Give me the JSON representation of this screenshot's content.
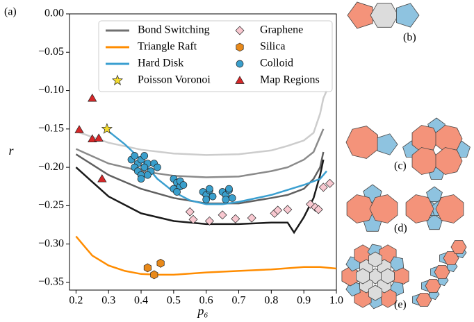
{
  "chart_data": {
    "type": "line",
    "label": "(a)",
    "xlabel": "p₆",
    "ylabel": "r",
    "xlim": [
      0.18,
      1.0
    ],
    "ylim": [
      -0.36,
      0.0
    ],
    "xticks": [
      0.2,
      0.3,
      0.4,
      0.5,
      0.6,
      0.7,
      0.8,
      0.9,
      {
        "value": 1.0,
        "label": "1.0"
      }
    ],
    "yticks": [
      {
        "value": 0.0,
        "label": "0.00"
      },
      {
        "value": -0.05,
        "label": "−0.05"
      },
      {
        "value": -0.1,
        "label": "−0.10"
      },
      {
        "value": -0.15,
        "label": "−0.15"
      },
      {
        "value": -0.2,
        "label": "−0.20"
      },
      {
        "value": -0.25,
        "label": "−0.25"
      },
      {
        "value": -0.3,
        "label": "−0.30"
      },
      {
        "value": -0.35,
        "label": "−0.35"
      }
    ],
    "series": [
      {
        "name": "Bond Switching",
        "kind": "line",
        "color": "#707070",
        "curves": [
          {
            "color": "#cccccc",
            "x": [
              0.2,
              0.3,
              0.4,
              0.5,
              0.6,
              0.7,
              0.8,
              0.85,
              0.9,
              0.93,
              0.95,
              0.96,
              0.97
            ],
            "values": [
              -0.153,
              -0.168,
              -0.177,
              -0.182,
              -0.184,
              -0.183,
              -0.178,
              -0.172,
              -0.165,
              -0.155,
              -0.13,
              -0.11,
              -0.1
            ]
          },
          {
            "color": "#8a8a8a",
            "x": [
              0.2,
              0.3,
              0.4,
              0.5,
              0.6,
              0.7,
              0.8,
              0.85,
              0.9,
              0.93,
              0.95,
              0.96
            ],
            "values": [
              -0.176,
              -0.195,
              -0.205,
              -0.211,
              -0.213,
              -0.212,
              -0.205,
              -0.2,
              -0.19,
              -0.18,
              -0.16,
              -0.15
            ]
          },
          {
            "color": "#606060",
            "x": [
              0.2,
              0.3,
              0.4,
              0.5,
              0.6,
              0.7,
              0.8,
              0.85,
              0.9,
              0.93,
              0.95,
              0.96
            ],
            "values": [
              -0.183,
              -0.21,
              -0.228,
              -0.24,
              -0.247,
              -0.247,
              -0.24,
              -0.236,
              -0.228,
              -0.215,
              -0.2,
              -0.18
            ]
          },
          {
            "color": "#1a1a1a",
            "x": [
              0.2,
              0.3,
              0.4,
              0.5,
              0.6,
              0.7,
              0.8,
              0.85,
              0.87,
              0.9,
              0.93,
              0.95,
              0.96
            ],
            "values": [
              -0.2,
              -0.238,
              -0.26,
              -0.27,
              -0.274,
              -0.274,
              -0.272,
              -0.272,
              -0.285,
              -0.265,
              -0.24,
              -0.21,
              -0.19
            ]
          }
        ]
      },
      {
        "name": "Triangle Raft",
        "kind": "line",
        "color": "#ff8c00",
        "x": [
          0.2,
          0.22,
          0.25,
          0.3,
          0.35,
          0.4,
          0.45,
          0.5,
          0.6,
          0.7,
          0.8,
          0.9,
          0.95,
          1.0
        ],
        "values": [
          -0.29,
          -0.3,
          -0.315,
          -0.328,
          -0.335,
          -0.339,
          -0.34,
          -0.34,
          -0.337,
          -0.335,
          -0.333,
          -0.33,
          -0.33,
          -0.332
        ]
      },
      {
        "name": "Hard Disk",
        "kind": "line",
        "color": "#3a9fd0",
        "x": [
          0.3,
          0.35,
          0.4,
          0.45,
          0.5,
          0.55,
          0.6,
          0.65,
          0.7,
          0.8,
          0.9,
          0.95,
          0.97
        ],
        "values": [
          -0.153,
          -0.17,
          -0.19,
          -0.215,
          -0.232,
          -0.243,
          -0.248,
          -0.248,
          -0.245,
          -0.236,
          -0.223,
          -0.215,
          -0.205
        ]
      },
      {
        "name": "Poisson Voronoi",
        "kind": "scatter",
        "marker": "star",
        "color": "#f5dc2c",
        "x": [
          0.295
        ],
        "values": [
          -0.15
        ]
      },
      {
        "name": "Graphene",
        "kind": "scatter",
        "marker": "diamond",
        "color": "#f8c8d0",
        "x": [
          0.55,
          0.56,
          0.61,
          0.65,
          0.69,
          0.74,
          0.81,
          0.82,
          0.85,
          0.92,
          0.935,
          0.945,
          0.96,
          0.98
        ],
        "values": [
          -0.258,
          -0.268,
          -0.27,
          -0.262,
          -0.267,
          -0.266,
          -0.26,
          -0.256,
          -0.255,
          -0.248,
          -0.252,
          -0.255,
          -0.226,
          -0.221
        ]
      },
      {
        "name": "Silica",
        "kind": "scatter",
        "marker": "hexagon",
        "color": "#e8891a",
        "x": [
          0.42,
          0.44,
          0.46
        ],
        "values": [
          -0.331,
          -0.34,
          -0.325
        ]
      },
      {
        "name": "Colloid",
        "kind": "scatter",
        "marker": "circle",
        "color": "#3a9fcc",
        "x": [
          0.37,
          0.38,
          0.39,
          0.4,
          0.41,
          0.42,
          0.43,
          0.38,
          0.39,
          0.4,
          0.41,
          0.42,
          0.4,
          0.41,
          0.44,
          0.45,
          0.5,
          0.51,
          0.52,
          0.5,
          0.51,
          0.52,
          0.53,
          0.59,
          0.6,
          0.61,
          0.62,
          0.6,
          0.61,
          0.65,
          0.66,
          0.67,
          0.68,
          0.66,
          0.67
        ],
        "values": [
          -0.19,
          -0.185,
          -0.195,
          -0.19,
          -0.2,
          -0.195,
          -0.205,
          -0.2,
          -0.205,
          -0.21,
          -0.185,
          -0.21,
          -0.215,
          -0.2,
          -0.195,
          -0.2,
          -0.215,
          -0.22,
          -0.225,
          -0.228,
          -0.232,
          -0.218,
          -0.223,
          -0.232,
          -0.236,
          -0.23,
          -0.238,
          -0.242,
          -0.228,
          -0.232,
          -0.236,
          -0.23,
          -0.24,
          -0.242,
          -0.228
        ]
      },
      {
        "name": "Map Regions",
        "kind": "scatter",
        "marker": "triangle",
        "color": "#d62728",
        "x": [
          0.21,
          0.25,
          0.25,
          0.27,
          0.28
        ],
        "values": [
          -0.151,
          -0.11,
          -0.163,
          -0.162,
          -0.215
        ]
      }
    ]
  },
  "panel_labels": [
    "(b)",
    "(c)",
    "(d)",
    "(e)"
  ]
}
